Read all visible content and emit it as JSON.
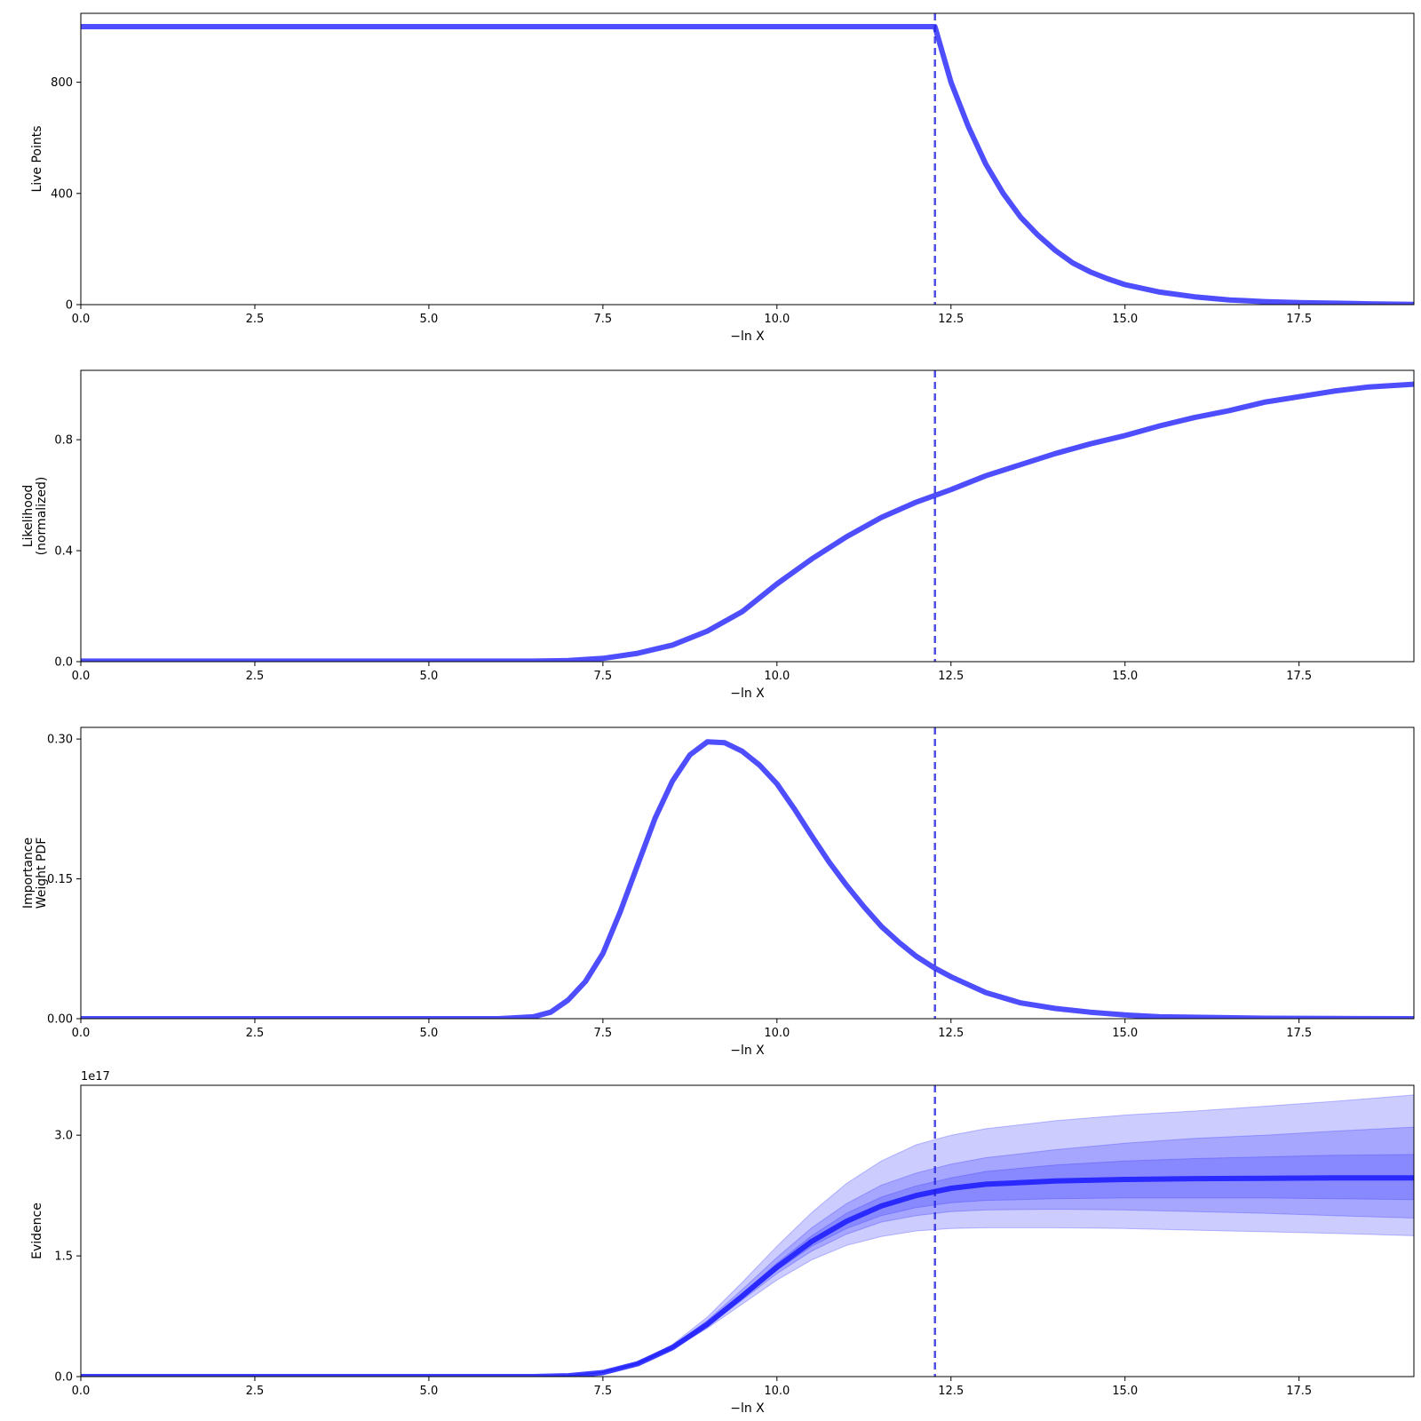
{
  "colors": {
    "line": "#2222ff",
    "median_line": "#1a1aff",
    "band": "#3333ff",
    "marker": "#2222dd",
    "axes": "#000000",
    "background": "#ffffff"
  },
  "chart_data": [
    {
      "type": "line",
      "xlabel": "−ln X",
      "ylabel": [
        "Live Points"
      ],
      "xlim": [
        0,
        19.15
      ],
      "ylim": [
        0,
        1048
      ],
      "xticks": [
        0,
        2.5,
        5,
        7.5,
        10,
        12.5,
        15,
        17.5
      ],
      "xtick_labels": [
        "0.0",
        "2.5",
        "5.0",
        "7.5",
        "10.0",
        "12.5",
        "15.0",
        "17.5"
      ],
      "yticks": [
        0,
        400,
        800
      ],
      "ytick_labels": [
        "0",
        "400",
        "800"
      ],
      "vline_x": 12.27,
      "series": [
        {
          "x": [
            0,
            12.27,
            12.5,
            12.75,
            13.0,
            13.25,
            13.5,
            13.75,
            14.0,
            14.25,
            14.5,
            14.75,
            15.0,
            15.5,
            16.0,
            16.5,
            17.0,
            17.5,
            18.0,
            18.5,
            19.15
          ],
          "y": [
            1000,
            1000,
            800,
            640,
            505,
            400,
            315,
            250,
            195,
            150,
            118,
            93,
            72,
            45,
            28,
            17,
            11,
            7,
            5,
            3,
            1
          ]
        }
      ]
    },
    {
      "type": "line",
      "xlabel": "−ln X",
      "ylabel": [
        "Likelihood",
        "(normalized)"
      ],
      "xlim": [
        0,
        19.15
      ],
      "ylim": [
        0,
        1.05
      ],
      "xticks": [
        0,
        2.5,
        5,
        7.5,
        10,
        12.5,
        15,
        17.5
      ],
      "xtick_labels": [
        "0.0",
        "2.5",
        "5.0",
        "7.5",
        "10.0",
        "12.5",
        "15.0",
        "17.5"
      ],
      "yticks": [
        0,
        0.4,
        0.8
      ],
      "ytick_labels": [
        "0.0",
        "0.4",
        "0.8"
      ],
      "vline_x": 12.27,
      "series": [
        {
          "x": [
            0,
            6.5,
            7.0,
            7.5,
            8.0,
            8.5,
            9.0,
            9.5,
            10.0,
            10.5,
            11.0,
            11.5,
            12.0,
            12.5,
            13.0,
            13.5,
            14.0,
            14.5,
            15.0,
            15.5,
            16.0,
            16.5,
            17.0,
            17.5,
            18.0,
            18.5,
            19.15
          ],
          "y": [
            0.002,
            0.002,
            0.004,
            0.012,
            0.03,
            0.06,
            0.11,
            0.18,
            0.28,
            0.37,
            0.45,
            0.52,
            0.575,
            0.62,
            0.67,
            0.71,
            0.75,
            0.785,
            0.815,
            0.85,
            0.88,
            0.905,
            0.935,
            0.955,
            0.975,
            0.99,
            1.0
          ]
        }
      ]
    },
    {
      "type": "line",
      "xlabel": "−ln X",
      "ylabel": [
        "Importance",
        "Weight PDF"
      ],
      "xlim": [
        0,
        19.15
      ],
      "ylim": [
        0,
        0.3125
      ],
      "xticks": [
        0,
        2.5,
        5,
        7.5,
        10,
        12.5,
        15,
        17.5
      ],
      "xtick_labels": [
        "0.0",
        "2.5",
        "5.0",
        "7.5",
        "10.0",
        "12.5",
        "15.0",
        "17.5"
      ],
      "yticks": [
        0,
        0.15,
        0.3
      ],
      "ytick_labels": [
        "0.00",
        "0.15",
        "0.30"
      ],
      "vline_x": 12.27,
      "series": [
        {
          "x": [
            0,
            6.0,
            6.5,
            6.75,
            7.0,
            7.25,
            7.5,
            7.75,
            8.0,
            8.25,
            8.5,
            8.75,
            9.0,
            9.25,
            9.5,
            9.75,
            10.0,
            10.25,
            10.5,
            10.75,
            11.0,
            11.25,
            11.5,
            11.75,
            12.0,
            12.25,
            12.5,
            13.0,
            13.5,
            14.0,
            14.5,
            15.0,
            15.5,
            16.0,
            17.0,
            18.0,
            19.15
          ],
          "y": [
            0,
            0,
            0.002,
            0.007,
            0.02,
            0.04,
            0.07,
            0.115,
            0.165,
            0.215,
            0.255,
            0.283,
            0.297,
            0.296,
            0.287,
            0.272,
            0.252,
            0.225,
            0.196,
            0.168,
            0.143,
            0.12,
            0.099,
            0.082,
            0.067,
            0.055,
            0.045,
            0.028,
            0.017,
            0.011,
            0.007,
            0.004,
            0.002,
            0.0015,
            0.0005,
            0.0002,
            0
          ]
        }
      ]
    },
    {
      "type": "area",
      "xlabel": "−ln X",
      "ylabel": [
        "Evidence"
      ],
      "offset_label": "1e17",
      "xlim": [
        0,
        19.15
      ],
      "ylim": [
        0,
        3.62
      ],
      "xticks": [
        0,
        2.5,
        5,
        7.5,
        10,
        12.5,
        15,
        17.5
      ],
      "xtick_labels": [
        "0.0",
        "2.5",
        "5.0",
        "7.5",
        "10.0",
        "12.5",
        "15.0",
        "17.5"
      ],
      "yticks": [
        0,
        1.5,
        3.0
      ],
      "ytick_labels": [
        "0.0",
        "1.5",
        "3.0"
      ],
      "vline_x": 12.27,
      "x": [
        0,
        6.5,
        7.0,
        7.5,
        8.0,
        8.5,
        9.0,
        9.5,
        10.0,
        10.5,
        11.0,
        11.5,
        12.0,
        12.5,
        13.0,
        14.0,
        15.0,
        16.0,
        17.0,
        18.0,
        19.15
      ],
      "median": [
        0,
        0,
        0.01,
        0.05,
        0.16,
        0.36,
        0.65,
        1.0,
        1.36,
        1.68,
        1.93,
        2.12,
        2.25,
        2.34,
        2.39,
        2.43,
        2.45,
        2.46,
        2.465,
        2.47,
        2.47
      ],
      "bands": [
        {
          "lower": [
            0,
            0,
            0.01,
            0.05,
            0.15,
            0.34,
            0.6,
            0.9,
            1.2,
            1.45,
            1.63,
            1.74,
            1.81,
            1.84,
            1.85,
            1.85,
            1.84,
            1.82,
            1.8,
            1.78,
            1.75
          ],
          "upper": [
            0,
            0,
            0.01,
            0.06,
            0.18,
            0.4,
            0.74,
            1.17,
            1.62,
            2.04,
            2.4,
            2.68,
            2.88,
            3.0,
            3.08,
            3.18,
            3.25,
            3.3,
            3.36,
            3.42,
            3.5
          ]
        },
        {
          "lower": [
            0,
            0,
            0.01,
            0.05,
            0.155,
            0.35,
            0.62,
            0.95,
            1.28,
            1.56,
            1.77,
            1.92,
            2.0,
            2.05,
            2.07,
            2.08,
            2.07,
            2.05,
            2.03,
            2.0,
            1.97
          ],
          "upper": [
            0,
            0,
            0.01,
            0.055,
            0.17,
            0.38,
            0.7,
            1.08,
            1.48,
            1.85,
            2.15,
            2.38,
            2.53,
            2.64,
            2.72,
            2.82,
            2.9,
            2.96,
            3.0,
            3.05,
            3.1
          ]
        },
        {
          "lower": [
            0,
            0,
            0.01,
            0.05,
            0.158,
            0.355,
            0.635,
            0.97,
            1.32,
            1.62,
            1.84,
            2.0,
            2.1,
            2.16,
            2.19,
            2.21,
            2.22,
            2.22,
            2.22,
            2.21,
            2.2
          ],
          "upper": [
            0,
            0,
            0.01,
            0.052,
            0.165,
            0.37,
            0.67,
            1.03,
            1.41,
            1.75,
            2.03,
            2.23,
            2.37,
            2.47,
            2.55,
            2.63,
            2.68,
            2.71,
            2.73,
            2.75,
            2.76
          ]
        }
      ]
    }
  ]
}
